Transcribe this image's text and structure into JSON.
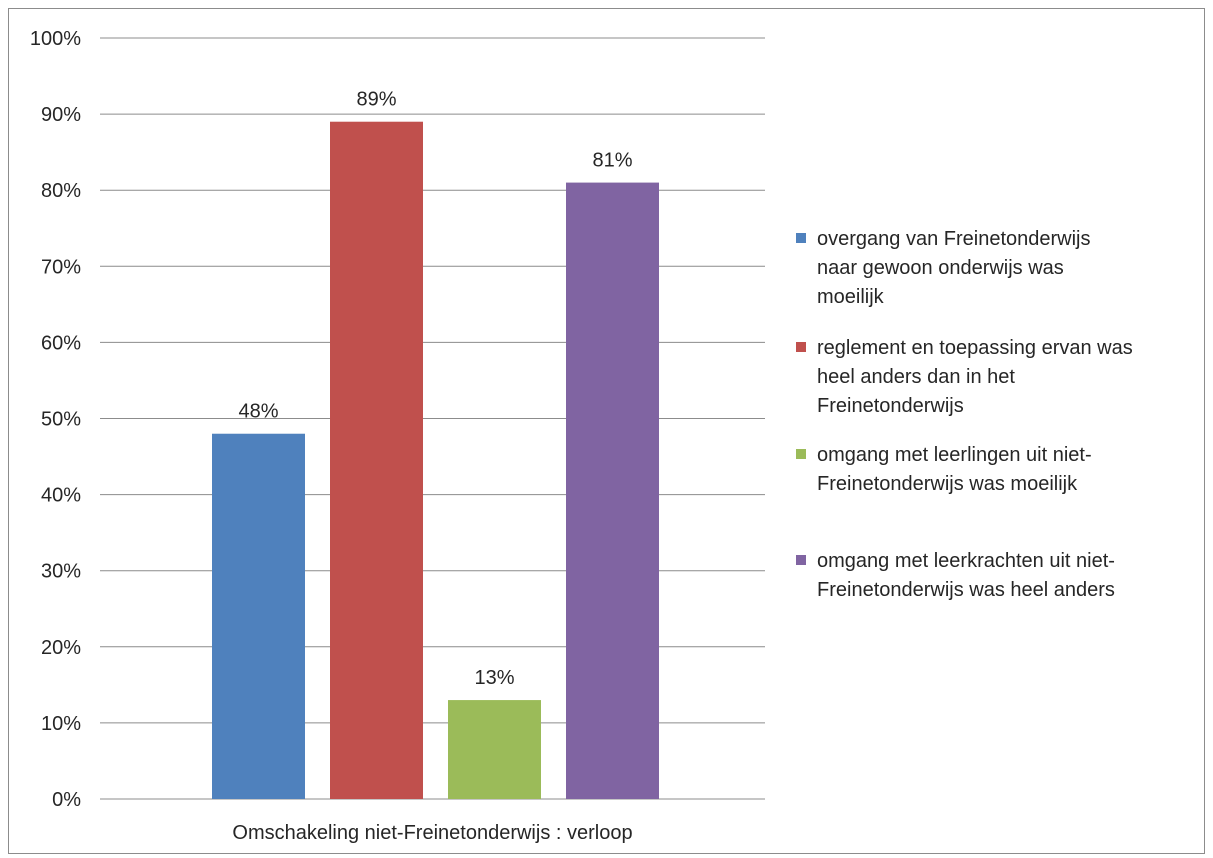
{
  "chart_data": {
    "type": "bar",
    "categories": [
      "Omschakeling niet-Freinetonderwijs : verloop"
    ],
    "series": [
      {
        "name": "overgang van Freinetonderwijs naar gewoon onderwijs was moeilijk",
        "legend_lines": [
          "overgang van Freinetonderwijs",
          "naar gewoon onderwijs was",
          "moeilijk"
        ],
        "values": [
          48
        ],
        "label": "48%",
        "color": "#4F81BD"
      },
      {
        "name": "reglement en toepassing ervan was heel anders dan in het Freinetonderwijs",
        "legend_lines": [
          "reglement en toepassing ervan was",
          "heel anders dan in het",
          "Freinetonderwijs"
        ],
        "values": [
          89
        ],
        "label": "89%",
        "color": "#C0504D"
      },
      {
        "name": "omgang met leerlingen uit niet-Freinetonderwijs was moeilijk",
        "legend_lines": [
          "omgang met leerlingen uit niet-",
          "Freinetonderwijs was moeilijk"
        ],
        "values": [
          13
        ],
        "label": "13%",
        "color": "#9BBB59"
      },
      {
        "name": "omgang met leerkrachten uit niet-Freinetonderwijs was heel anders",
        "legend_lines": [
          "omgang met leerkrachten uit niet-",
          "Freinetonderwijs was heel anders"
        ],
        "values": [
          81
        ],
        "label": "81%",
        "color": "#8064A2"
      }
    ],
    "ylim": [
      0,
      100
    ],
    "yticks": [
      "0%",
      "10%",
      "20%",
      "30%",
      "40%",
      "50%",
      "60%",
      "70%",
      "80%",
      "90%",
      "100%"
    ],
    "title": "",
    "xlabel": "",
    "ylabel": "",
    "grid": true,
    "legend_position": "right"
  }
}
